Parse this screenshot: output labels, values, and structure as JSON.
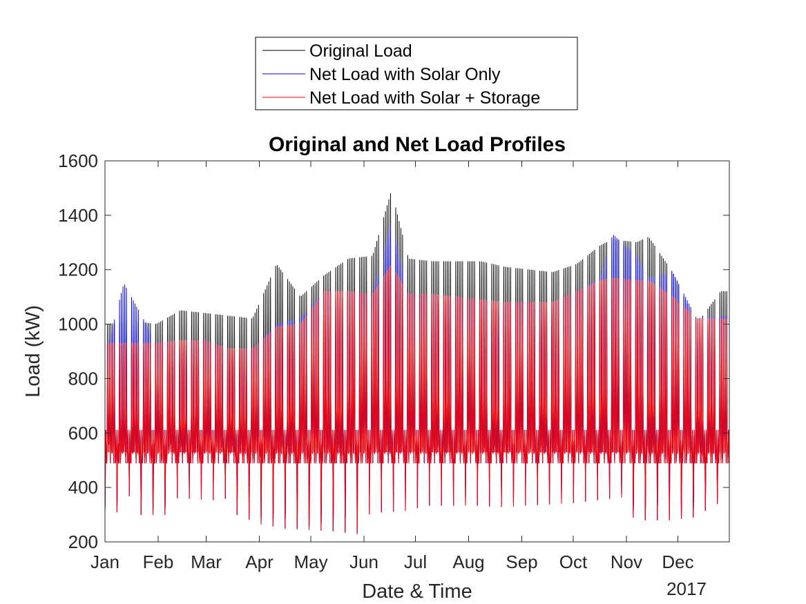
{
  "chart_data": {
    "type": "line",
    "title": "Original and Net Load Profiles",
    "xlabel": "Date & Time",
    "ylabel": "Load (kW)",
    "year_label": "2017",
    "x_ticks": [
      "Jan",
      "Feb",
      "Mar",
      "Apr",
      "May",
      "Jun",
      "Jul",
      "Aug",
      "Sep",
      "Oct",
      "Nov",
      "Dec"
    ],
    "ylim": [
      200,
      1600
    ],
    "y_ticks": [
      200,
      400,
      600,
      800,
      1000,
      1200,
      1400,
      1600
    ],
    "grid": false,
    "legend_position": "top-center",
    "series": [
      {
        "name": "Original Load",
        "color": "#000000",
        "x": [
          "2017-01-03",
          "2017-01-17",
          "2017-01-31",
          "2017-02-14",
          "2017-02-28",
          "2017-03-14",
          "2017-03-28",
          "2017-04-11",
          "2017-04-25",
          "2017-05-09",
          "2017-05-23",
          "2017-06-06",
          "2017-06-17",
          "2017-06-27",
          "2017-07-11",
          "2017-07-25",
          "2017-08-08",
          "2017-08-22",
          "2017-09-05",
          "2017-09-19",
          "2017-10-03",
          "2017-10-17",
          "2017-10-24",
          "2017-11-07",
          "2017-11-14",
          "2017-11-28",
          "2017-12-12",
          "2017-12-26"
        ],
        "values": [
          1000,
          1010,
          1000,
          1050,
          1040,
          1030,
          1020,
          1220,
          1100,
          1180,
          1240,
          1250,
          1490,
          1240,
          1230,
          1230,
          1230,
          1210,
          1200,
          1190,
          1220,
          1290,
          1310,
          1300,
          1320,
          1190,
          1000,
          1120
        ]
      },
      {
        "name": "Net Load with Solar Only",
        "color": "#0000ff",
        "x": [
          "2017-01-03",
          "2017-01-12",
          "2017-01-31",
          "2017-02-14",
          "2017-02-28",
          "2017-03-14",
          "2017-03-28",
          "2017-04-11",
          "2017-04-25",
          "2017-05-09",
          "2017-05-23",
          "2017-06-06",
          "2017-06-17",
          "2017-06-27",
          "2017-07-11",
          "2017-07-25",
          "2017-08-08",
          "2017-08-22",
          "2017-09-05",
          "2017-09-19",
          "2017-10-03",
          "2017-10-17",
          "2017-10-24",
          "2017-11-07",
          "2017-11-14",
          "2017-11-28",
          "2017-12-12",
          "2017-12-26"
        ],
        "values": [
          930,
          1150,
          930,
          940,
          940,
          910,
          910,
          1000,
          1020,
          1120,
          1120,
          1110,
          1380,
          1110,
          1110,
          1100,
          1090,
          1080,
          1080,
          1080,
          1120,
          1170,
          1330,
          1250,
          1170,
          1190,
          1020,
          1030
        ]
      },
      {
        "name": "Net Load with Solar + Storage",
        "color": "#ff0000",
        "x": [
          "2017-01-03",
          "2017-01-17",
          "2017-01-31",
          "2017-02-14",
          "2017-02-28",
          "2017-03-14",
          "2017-03-28",
          "2017-04-11",
          "2017-04-25",
          "2017-05-09",
          "2017-05-23",
          "2017-06-06",
          "2017-06-17",
          "2017-06-27",
          "2017-07-11",
          "2017-07-25",
          "2017-08-08",
          "2017-08-22",
          "2017-09-05",
          "2017-09-19",
          "2017-10-03",
          "2017-10-17",
          "2017-10-24",
          "2017-11-07",
          "2017-11-14",
          "2017-11-28",
          "2017-12-12",
          "2017-12-26"
        ],
        "values": [
          930,
          930,
          930,
          940,
          940,
          910,
          910,
          990,
          1000,
          1120,
          1120,
          1110,
          1220,
          1110,
          1110,
          1100,
          1090,
          1080,
          1080,
          1080,
          1120,
          1160,
          1170,
          1160,
          1160,
          1100,
          1020,
          1020
        ]
      }
    ],
    "min_load": {
      "x": [
        "2017-01-08",
        "2017-01-22",
        "2017-02-05",
        "2017-02-19",
        "2017-03-05",
        "2017-03-19",
        "2017-04-02",
        "2017-04-16",
        "2017-04-30",
        "2017-05-14",
        "2017-05-28",
        "2017-06-11",
        "2017-06-25",
        "2017-07-09",
        "2017-07-23",
        "2017-08-06",
        "2017-08-20",
        "2017-09-03",
        "2017-09-17",
        "2017-10-01",
        "2017-10-15",
        "2017-10-29",
        "2017-11-12",
        "2017-11-26",
        "2017-12-10",
        "2017-12-24"
      ],
      "values": [
        310,
        300,
        300,
        295,
        290,
        300,
        265,
        250,
        245,
        240,
        230,
        245,
        250,
        270,
        270,
        270,
        265,
        270,
        275,
        280,
        290,
        300,
        280,
        280,
        290,
        340
      ]
    },
    "base_band": [
      450,
      680
    ]
  }
}
